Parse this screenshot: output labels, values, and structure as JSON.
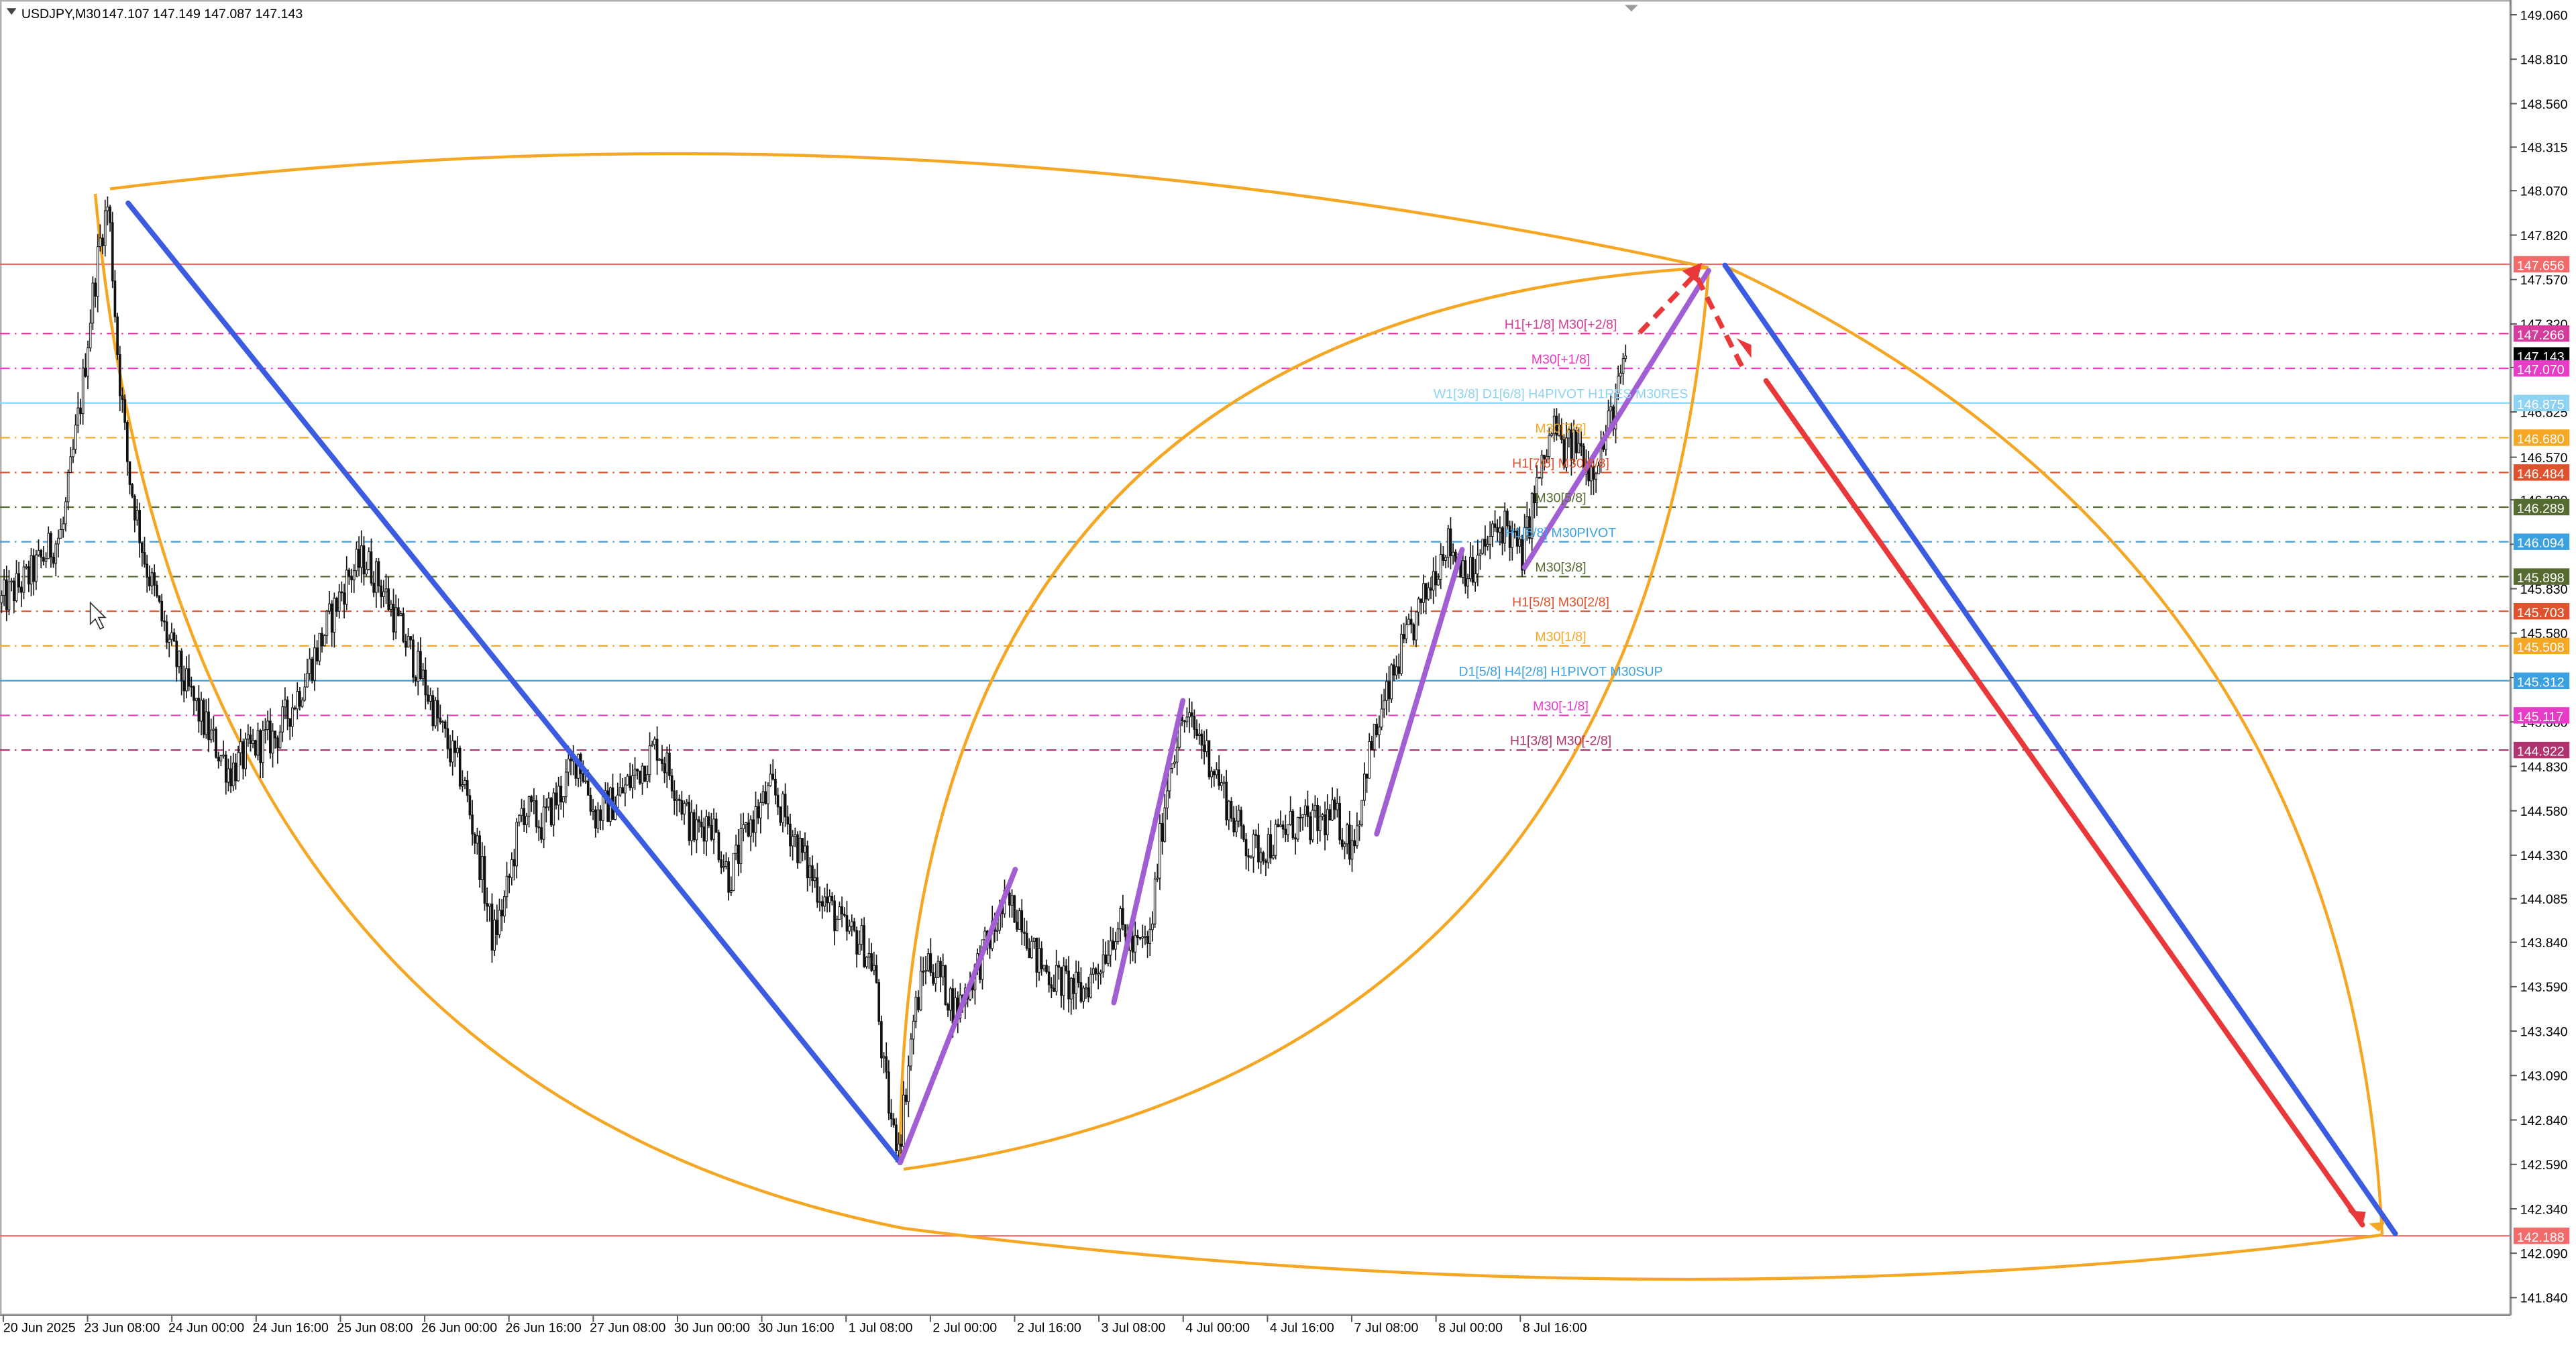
{
  "header": {
    "symbol_timeframe": "USDJPY,M30",
    "ohlc": "147.107 147.149 147.087 147.143"
  },
  "colors": {
    "background": "#ffffff",
    "candle": "#000000",
    "orange": "#f5a623",
    "blue": "#3b5be0",
    "red": "#e8383a",
    "purple": "#a25fd4",
    "red_line": "#f26a6a",
    "cyan_line": "#8fd3f4"
  },
  "chart_data": {
    "type": "candlestick",
    "symbol": "USDJPY",
    "timeframe": "M30",
    "ylim": [
      141.7,
      149.1
    ],
    "y_ticks": [
      "149.060",
      "148.810",
      "148.560",
      "148.315",
      "148.070",
      "147.820",
      "147.570",
      "147.320",
      "147.075",
      "146.825",
      "146.570",
      "146.330",
      "146.080",
      "145.830",
      "145.580",
      "145.330",
      "145.080",
      "144.830",
      "144.580",
      "144.330",
      "144.085",
      "143.840",
      "143.590",
      "143.340",
      "143.090",
      "142.840",
      "142.590",
      "142.340",
      "142.090",
      "141.840"
    ],
    "x_labels": [
      "20 Jun 2025",
      "23 Jun 08:00",
      "24 Jun 00:00",
      "24 Jun 16:00",
      "25 Jun 08:00",
      "26 Jun 00:00",
      "26 Jun 16:00",
      "27 Jun 08:00",
      "30 Jun 00:00",
      "30 Jun 16:00",
      "1 Jul 08:00",
      "2 Jul 00:00",
      "2 Jul 16:00",
      "3 Jul 08:00",
      "4 Jul 00:00",
      "4 Jul 16:00",
      "7 Jul 08:00",
      "8 Jul 00:00",
      "8 Jul 16:00"
    ],
    "price_path": [
      [
        0,
        145.75
      ],
      [
        18,
        145.9
      ],
      [
        38,
        146.15
      ],
      [
        50,
        146.95
      ],
      [
        56,
        147.45
      ],
      [
        62,
        147.85
      ],
      [
        66,
        148.0
      ],
      [
        72,
        147.1
      ],
      [
        78,
        146.5
      ],
      [
        88,
        146.0
      ],
      [
        100,
        145.6
      ],
      [
        112,
        145.3
      ],
      [
        128,
        145.0
      ],
      [
        140,
        144.8
      ],
      [
        156,
        144.95
      ],
      [
        168,
        145.0
      ],
      [
        182,
        145.25
      ],
      [
        196,
        145.55
      ],
      [
        212,
        145.9
      ],
      [
        222,
        146.0
      ],
      [
        232,
        145.85
      ],
      [
        246,
        145.55
      ],
      [
        258,
        145.3
      ],
      [
        270,
        145.0
      ],
      [
        282,
        144.75
      ],
      [
        292,
        144.3
      ],
      [
        300,
        143.85
      ],
      [
        308,
        144.1
      ],
      [
        318,
        144.6
      ],
      [
        330,
        144.5
      ],
      [
        342,
        144.7
      ],
      [
        352,
        144.9
      ],
      [
        362,
        144.55
      ],
      [
        376,
        144.65
      ],
      [
        388,
        144.8
      ],
      [
        400,
        144.95
      ],
      [
        410,
        144.75
      ],
      [
        422,
        144.45
      ],
      [
        432,
        144.55
      ],
      [
        444,
        144.2
      ],
      [
        456,
        144.5
      ],
      [
        470,
        144.7
      ],
      [
        480,
        144.5
      ],
      [
        492,
        144.25
      ],
      [
        504,
        144.05
      ],
      [
        514,
        143.9
      ],
      [
        524,
        143.85
      ],
      [
        532,
        143.7
      ],
      [
        538,
        143.1
      ],
      [
        544,
        142.75
      ],
      [
        548,
        142.75
      ],
      [
        556,
        143.4
      ],
      [
        564,
        143.75
      ],
      [
        572,
        143.65
      ],
      [
        582,
        143.45
      ],
      [
        592,
        143.65
      ],
      [
        602,
        143.85
      ],
      [
        612,
        144.05
      ],
      [
        622,
        144.0
      ],
      [
        630,
        143.75
      ],
      [
        640,
        143.65
      ],
      [
        650,
        143.6
      ],
      [
        658,
        143.55
      ],
      [
        668,
        143.7
      ],
      [
        680,
        143.95
      ],
      [
        690,
        143.8
      ],
      [
        700,
        143.85
      ],
      [
        706,
        144.4
      ],
      [
        712,
        144.85
      ],
      [
        720,
        145.1
      ],
      [
        730,
        145.0
      ],
      [
        740,
        144.8
      ],
      [
        750,
        144.55
      ],
      [
        762,
        144.35
      ],
      [
        774,
        144.4
      ],
      [
        786,
        144.5
      ],
      [
        800,
        144.5
      ],
      [
        812,
        144.55
      ],
      [
        822,
        144.4
      ],
      [
        826,
        144.5
      ],
      [
        832,
        144.85
      ],
      [
        842,
        145.15
      ],
      [
        852,
        145.45
      ],
      [
        862,
        145.65
      ],
      [
        872,
        145.9
      ],
      [
        880,
        146.1
      ],
      [
        888,
        146.0
      ],
      [
        896,
        145.9
      ],
      [
        906,
        146.1
      ],
      [
        916,
        146.2
      ],
      [
        926,
        146.0
      ],
      [
        934,
        146.35
      ],
      [
        940,
        146.55
      ],
      [
        946,
        146.75
      ],
      [
        952,
        146.6
      ],
      [
        960,
        146.65
      ],
      [
        968,
        146.5
      ],
      [
        976,
        146.65
      ],
      [
        984,
        146.9
      ],
      [
        990,
        147.143
      ]
    ],
    "horizontal_levels": [
      {
        "value": 147.656,
        "tag": "147.656",
        "color": "#f26a6a",
        "style": "solid",
        "label": ""
      },
      {
        "value": 147.266,
        "tag": "147.266",
        "color": "#d63c9c",
        "style": "dashdot",
        "label": "H1[+1/8] M30[+2/8]"
      },
      {
        "value": 147.143,
        "tag": "147.143",
        "color": "#000000",
        "style": "none",
        "label": ""
      },
      {
        "value": 147.07,
        "tag": "147.070",
        "color": "#e83cc8",
        "style": "dashdot",
        "label": "M30[+1/8]"
      },
      {
        "value": 146.875,
        "tag": "146.875",
        "color": "#8fd3f4",
        "style": "solid",
        "label": "W1[3/8] D1[6/8] H4PIVOT H1RES M30RES"
      },
      {
        "value": 146.68,
        "tag": "146.680",
        "color": "#f5a623",
        "style": "dashdot",
        "label": "M30[7/8]"
      },
      {
        "value": 146.484,
        "tag": "146.484",
        "color": "#e0522e",
        "style": "dashdot",
        "label": "H1[7/8] M30[6/8]"
      },
      {
        "value": 146.289,
        "tag": "146.289",
        "color": "#556b2f",
        "style": "dashdot",
        "label": "M30[5/8]"
      },
      {
        "value": 146.094,
        "tag": "146.094",
        "color": "#3aa0e0",
        "style": "dashdot",
        "label": "H1[6/8] M30PIVOT"
      },
      {
        "value": 145.898,
        "tag": "145.898",
        "color": "#556b2f",
        "style": "dashdot",
        "label": "M30[3/8]"
      },
      {
        "value": 145.703,
        "tag": "145.703",
        "color": "#e0522e",
        "style": "dashdot",
        "label": "H1[5/8] M30[2/8]"
      },
      {
        "value": 145.508,
        "tag": "145.508",
        "color": "#f5a623",
        "style": "dashdot",
        "label": "M30[1/8]"
      },
      {
        "value": 145.312,
        "tag": "145.312",
        "color": "#3aa0e0",
        "style": "solid",
        "label": "D1[5/8] H4[2/8] H1PIVOT M30SUP"
      },
      {
        "value": 145.117,
        "tag": "145.117",
        "color": "#e83cc8",
        "style": "dashdot",
        "label": "M30[-1/8]"
      },
      {
        "value": 144.922,
        "tag": "144.922",
        "color": "#b0326e",
        "style": "dashdot",
        "label": "H1[3/8] M30[-2/8]"
      },
      {
        "value": 142.188,
        "tag": "142.188",
        "color": "#f26a6a",
        "style": "solid",
        "label": ""
      }
    ],
    "trend_lines": [
      {
        "color": "#3b5be0",
        "from": [
          78,
          148.0
        ],
        "to": [
          548,
          142.6
        ]
      },
      {
        "color": "#3b5be0",
        "from": [
          1050,
          147.65
        ],
        "to": [
          1458,
          142.2
        ]
      },
      {
        "color": "#e8383a",
        "from": [
          1075,
          147.0
        ],
        "to": [
          1438,
          142.25
        ]
      },
      {
        "color": "#a25fd4",
        "from": [
          548,
          142.6
        ],
        "to": [
          618,
          144.25
        ]
      },
      {
        "color": "#a25fd4",
        "from": [
          678,
          143.5
        ],
        "to": [
          720,
          145.2
        ]
      },
      {
        "color": "#a25fd4",
        "from": [
          838,
          144.45
        ],
        "to": [
          890,
          146.05
        ]
      },
      {
        "color": "#a25fd4",
        "from": [
          928,
          145.95
        ],
        "to": [
          1040,
          147.62
        ]
      }
    ],
    "dashed_projection": [
      [
        998,
        147.27
      ],
      [
        1032,
        147.6
      ],
      [
        1062,
        147.05
      ]
    ]
  }
}
